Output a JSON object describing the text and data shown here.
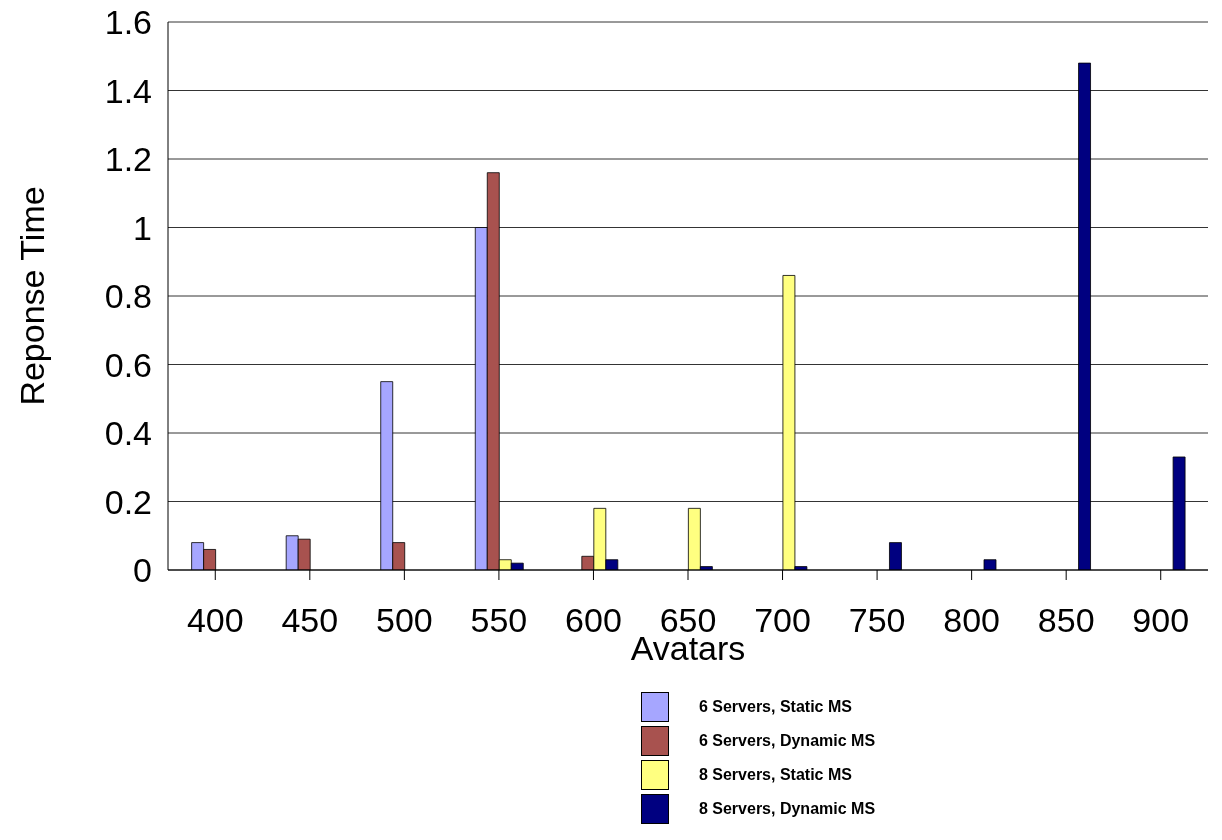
{
  "chart_data": {
    "type": "bar",
    "xlabel": "Avatars",
    "ylabel": "Reponse Time",
    "categories": [
      "400",
      "450",
      "500",
      "550",
      "600",
      "650",
      "700",
      "750",
      "800",
      "850",
      "900"
    ],
    "series": [
      {
        "name": "6 Servers, Static MS",
        "color": "#a6a6ff",
        "values": [
          0.08,
          0.1,
          0.55,
          1.0,
          null,
          null,
          null,
          null,
          null,
          null,
          null
        ]
      },
      {
        "name": "6 Servers, Dynamic MS",
        "color": "#a8524f",
        "values": [
          0.06,
          0.09,
          0.08,
          1.16,
          0.04,
          null,
          null,
          null,
          null,
          null,
          null
        ]
      },
      {
        "name": "8 Servers, Static MS",
        "color": "#ffff80",
        "values": [
          null,
          null,
          null,
          0.03,
          0.18,
          0.18,
          0.86,
          null,
          null,
          null,
          null
        ]
      },
      {
        "name": "8 Servers, Dynamic MS",
        "color": "#000080",
        "values": [
          null,
          null,
          null,
          0.02,
          0.03,
          0.01,
          0.01,
          0.08,
          0.03,
          1.48,
          0.33
        ]
      }
    ],
    "ylim": [
      0,
      1.6
    ],
    "yticks": [
      0,
      0.2,
      0.4,
      0.6,
      0.8,
      1,
      1.2,
      1.4,
      1.6
    ],
    "grid": "y",
    "legend": "bottom"
  }
}
